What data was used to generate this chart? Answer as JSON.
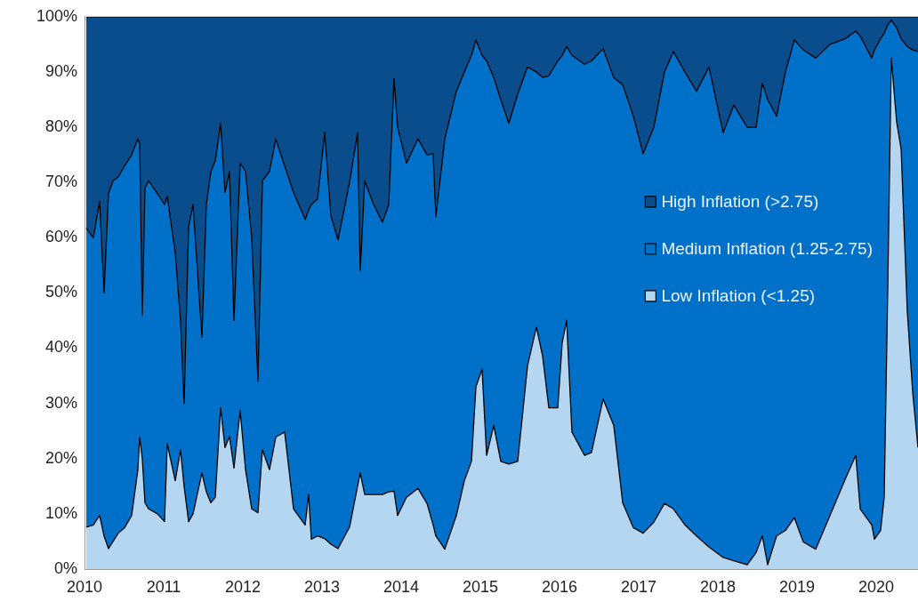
{
  "chart_data": {
    "type": "area",
    "stacked": true,
    "x": [
      2010.022,
      2010.112,
      2010.191,
      2010.247,
      2010.303,
      2010.36,
      2010.427,
      2010.506,
      2010.596,
      2010.674,
      2010.697,
      2010.73,
      2010.764,
      2010.809,
      2010.921,
      2011.011,
      2011.045,
      2011.146,
      2011.213,
      2011.258,
      2011.315,
      2011.371,
      2011.483,
      2011.539,
      2011.596,
      2011.652,
      2011.719,
      2011.775,
      2011.831,
      2011.888,
      2011.966,
      2012.034,
      2012.112,
      2012.191,
      2012.247,
      2012.337,
      2012.416,
      2012.528,
      2012.64,
      2012.787,
      2012.831,
      2012.865,
      2012.944,
      2013.034,
      2013.112,
      2013.202,
      2013.348,
      2013.449,
      2013.483,
      2013.539,
      2013.652,
      2013.764,
      2013.843,
      2013.91,
      2013.955,
      2014.067,
      2014.213,
      2014.326,
      2014.404,
      2014.438,
      2014.551,
      2014.697,
      2014.798,
      2014.888,
      2014.944,
      2015.022,
      2015.079,
      2015.169,
      2015.258,
      2015.36,
      2015.472,
      2015.596,
      2015.708,
      2015.787,
      2015.865,
      2015.978,
      2016.034,
      2016.09,
      2016.157,
      2016.315,
      2016.404,
      2016.551,
      2016.685,
      2016.798,
      2016.933,
      2017.056,
      2017.191,
      2017.326,
      2017.438,
      2017.584,
      2017.73,
      2017.888,
      2018.067,
      2018.202,
      2018.371,
      2018.483,
      2018.562,
      2018.629,
      2018.742,
      2018.854,
      2018.966,
      2019.079,
      2019.236,
      2019.416,
      2019.607,
      2019.742,
      2019.798,
      2019.944,
      2019.978,
      2020.056,
      2020.101,
      2020.146,
      2020.191,
      2020.258,
      2020.315,
      2020.393,
      2020.461,
      2020.528
    ],
    "series": [
      {
        "name": "Low Inflation (<1.25)",
        "color": "#b4d6f0",
        "values": [
          7.6,
          8,
          9.7,
          6,
          3.7,
          5,
          6.5,
          7.5,
          9.7,
          18,
          23.9,
          20,
          12,
          10.9,
          10,
          8.6,
          22.7,
          16,
          21.6,
          15,
          8.6,
          10,
          17.4,
          14,
          12,
          13,
          29.2,
          22,
          24,
          18.3,
          28.7,
          18,
          10.9,
          10.2,
          21.6,
          18,
          23.9,
          24.8,
          10.9,
          8,
          13.5,
          5.4,
          6,
          5.5,
          4.5,
          3.7,
          7.6,
          15,
          17.4,
          13.5,
          13.5,
          13.5,
          14,
          14.1,
          9.7,
          13,
          14.6,
          11.9,
          8,
          6,
          3.6,
          9.7,
          16,
          19.5,
          33,
          36.2,
          20.6,
          26,
          19.5,
          19,
          19.5,
          36.8,
          43.8,
          38.5,
          29.2,
          29.2,
          41,
          45,
          24.8,
          20.6,
          21.1,
          30.8,
          26,
          12,
          7.5,
          6.5,
          8.5,
          11.9,
          10.9,
          8,
          6,
          4,
          2.1,
          1.5,
          0.8,
          3,
          6,
          0.8,
          6,
          7,
          9.3,
          4.9,
          3.6,
          9.7,
          16.2,
          20.6,
          10.9,
          8,
          5.4,
          7,
          13,
          50.8,
          92.5,
          81,
          76,
          46.6,
          32,
          22
        ]
      },
      {
        "name": "Medium Inflation (1.25-2.75)",
        "color": "#0070c8",
        "values": [
          54.1,
          52,
          56.9,
          44,
          64.3,
          65.3,
          64.5,
          65.5,
          65.3,
          59.9,
          53.1,
          26,
          57,
          59.4,
          58,
          57.4,
          44.8,
          41.3,
          23.4,
          15,
          53.4,
          56,
          24.6,
          52,
          59.9,
          61,
          51.5,
          46.2,
          48,
          26.7,
          44.8,
          54,
          49.1,
          23.8,
          48.7,
          54,
          54,
          48.2,
          57.3,
          55.3,
          51.5,
          60.6,
          61,
          73.5,
          59.5,
          55.9,
          62.4,
          64,
          36.6,
          56.8,
          52.5,
          49.3,
          52,
          74.7,
          70.3,
          60.5,
          63.3,
          63.1,
          67.2,
          57.8,
          74.3,
          76.8,
          74,
          73.5,
          62.8,
          56.8,
          71.4,
          63,
          65.5,
          61.7,
          66.5,
          54.1,
          46.2,
          50.5,
          60.1,
          62.8,
          52,
          49.6,
          68.2,
          70.8,
          70.9,
          63.4,
          63,
          75.7,
          74.5,
          68.7,
          71.5,
          78.1,
          82.8,
          82,
          80.5,
          86.9,
          76.9,
          82.5,
          79.2,
          77,
          82,
          84.2,
          76,
          83,
          86.5,
          89.1,
          88.9,
          85.3,
          79.8,
          76.8,
          85.6,
          84.5,
          88.6,
          89,
          84,
          47.7,
          6.9,
          17,
          20,
          48,
          62,
          71.7
        ]
      },
      {
        "name": "High Inflation (>2.75)",
        "color": "#0a4d8c",
        "values": [
          38.3,
          40,
          33.4,
          50,
          32,
          29.7,
          29,
          27,
          25,
          22.1,
          23,
          54,
          31,
          29.7,
          32,
          34,
          32.5,
          42.7,
          55,
          70,
          38,
          34,
          58,
          34,
          28.1,
          26,
          19.3,
          31.8,
          28,
          55,
          26.5,
          28,
          40,
          66,
          29.7,
          28,
          22.1,
          27,
          31.8,
          36.7,
          35,
          34,
          33,
          21,
          36,
          40.4,
          30,
          21,
          46,
          29.7,
          34,
          37.2,
          34,
          11.2,
          20,
          26.5,
          22.1,
          25,
          24.8,
          36.2,
          22.1,
          13.5,
          10,
          7,
          4.2,
          7,
          8,
          11,
          15,
          19.3,
          14,
          9.1,
          10,
          11,
          10.7,
          8,
          7,
          5.4,
          7,
          8.6,
          8,
          5.8,
          11,
          12.3,
          18,
          24.8,
          20,
          10,
          6.3,
          10,
          13.5,
          9.1,
          21,
          16,
          20,
          20,
          12,
          15,
          18,
          10,
          4.2,
          6,
          7.5,
          5,
          4,
          2.6,
          3.5,
          7.5,
          6,
          4,
          3,
          1.5,
          0.6,
          2,
          4,
          5.4,
          6,
          6.3
        ]
      }
    ],
    "xlim": [
      2010,
      2020.528
    ],
    "xticks": [
      2010,
      2011,
      2012,
      2013,
      2014,
      2015,
      2016,
      2017,
      2018,
      2019,
      2020
    ],
    "ylim": [
      0,
      100
    ],
    "yticks": [
      {
        "value": 0,
        "label": "0%"
      },
      {
        "value": 10,
        "label": "10%"
      },
      {
        "value": 20,
        "label": "20%"
      },
      {
        "value": 30,
        "label": "30%"
      },
      {
        "value": 40,
        "label": "40%"
      },
      {
        "value": 50,
        "label": "50%"
      },
      {
        "value": 60,
        "label": "60%"
      },
      {
        "value": 70,
        "label": "70%"
      },
      {
        "value": 80,
        "label": "80%"
      },
      {
        "value": 90,
        "label": "90%"
      },
      {
        "value": 100,
        "label": "100%"
      }
    ],
    "grid": false,
    "legend": "right"
  }
}
